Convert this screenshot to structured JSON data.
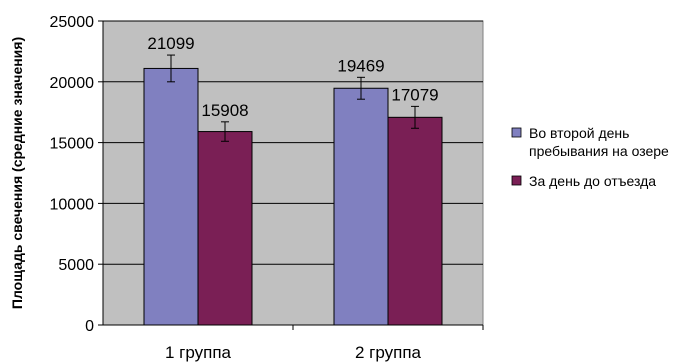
{
  "chart_data": {
    "type": "bar",
    "ylabel": "Площадь свечения (средние значения)",
    "categories": [
      "1 группа",
      "2 группа"
    ],
    "series": [
      {
        "name": "Во второй день пребывания на озере",
        "values": [
          21099,
          19469
        ],
        "errors": [
          1100,
          900
        ],
        "color": "#8080c0"
      },
      {
        "name": "За день до отъезда",
        "values": [
          15908,
          17079
        ],
        "errors": [
          800,
          900
        ],
        "color": "#7a1f55"
      }
    ],
    "ylim": [
      0,
      25000
    ],
    "yticks": [
      "0",
      "5000",
      "10000",
      "15000",
      "20000",
      "25000"
    ],
    "grid": true,
    "legend": "right",
    "plot_background": "#c0c0c0"
  }
}
